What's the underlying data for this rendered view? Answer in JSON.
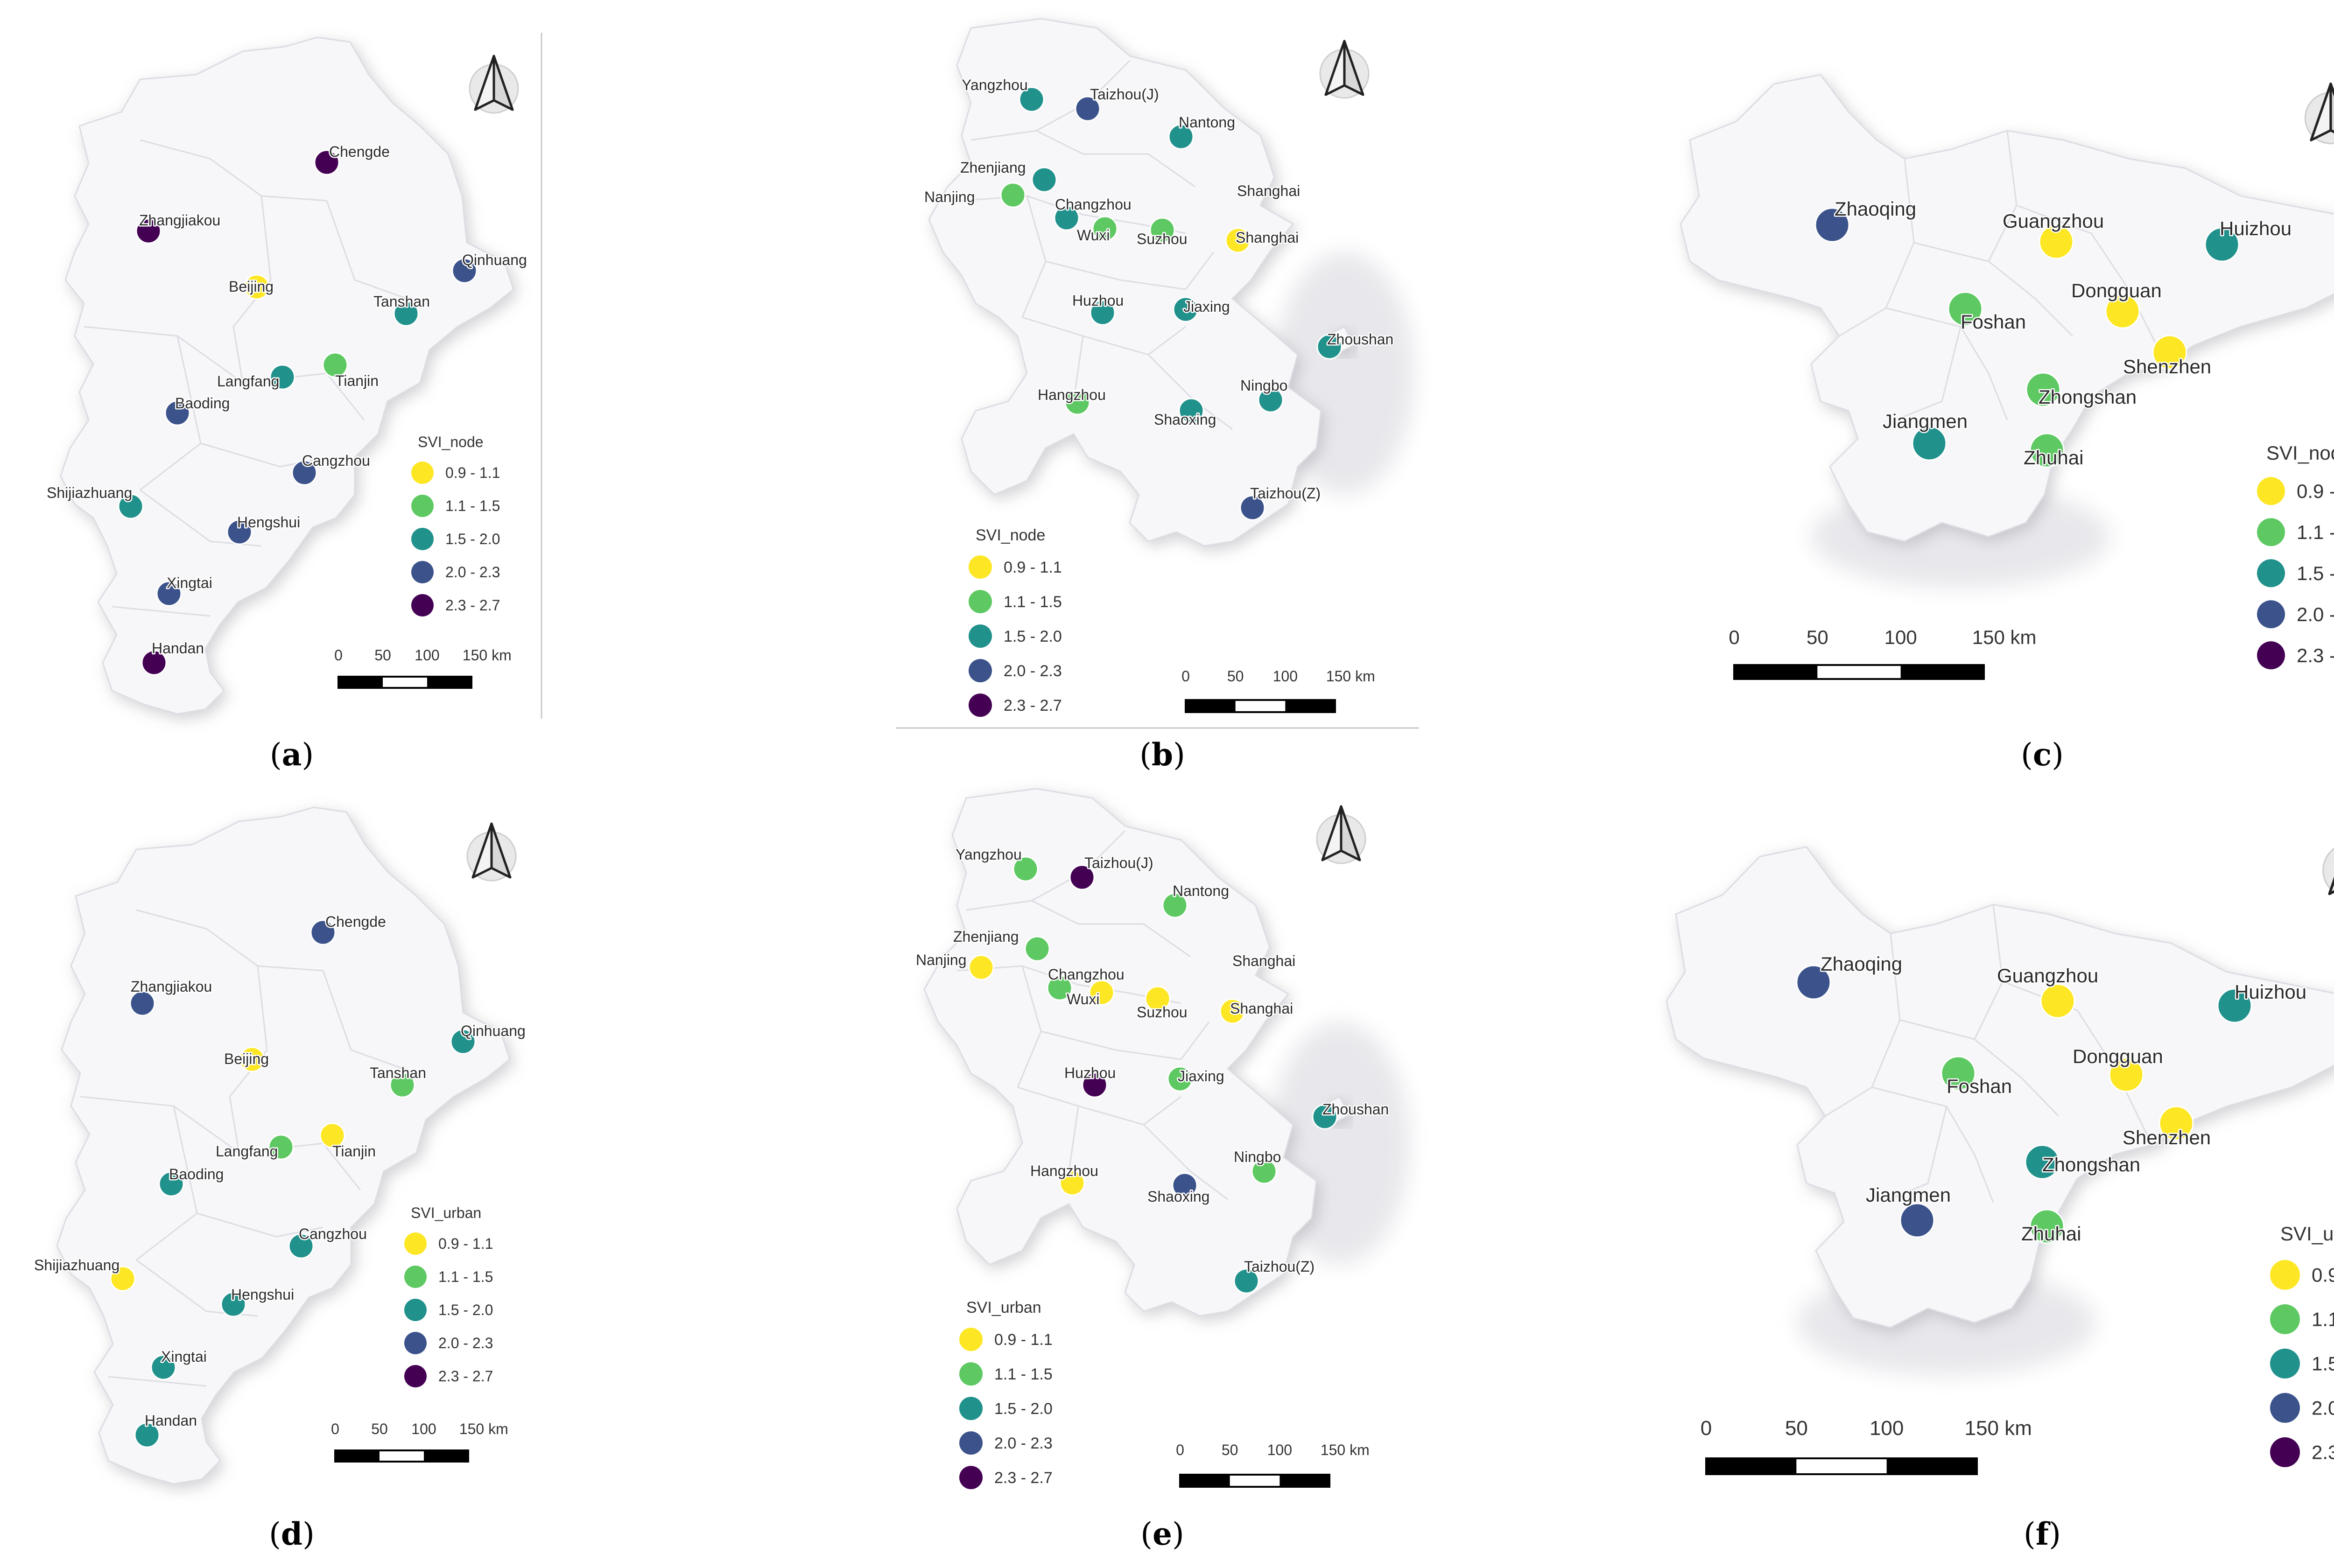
{
  "figure": {
    "colors": {
      "0.9 - 1.1": "#fde725",
      "1.1 - 1.5": "#5ec962",
      "1.5 - 2.0": "#21918c",
      "2.0 - 2.3": "#3b528b",
      "2.3 - 2.7": "#440154"
    },
    "legend_classes": [
      "0.9 - 1.1",
      "1.1 - 1.5",
      "1.5 - 2.0",
      "2.0 - 2.3",
      "2.3 - 2.7"
    ],
    "scale_ticks": [
      "0",
      "50",
      "100",
      "150 km"
    ],
    "north_arrow_icon": "north-arrow-icon",
    "panels": [
      {
        "id": "a",
        "label": "a",
        "legend_title": "SVI_node",
        "cities": [
          {
            "name": "Chengde",
            "svi": "2.3 - 2.7"
          },
          {
            "name": "Zhangjiakou",
            "svi": "2.3 - 2.7"
          },
          {
            "name": "Qinhuang",
            "svi": "2.0 - 2.3"
          },
          {
            "name": "Beijing",
            "svi": "0.9 - 1.1"
          },
          {
            "name": "Tanshan",
            "svi": "1.5 - 2.0"
          },
          {
            "name": "Langfang",
            "svi": "1.5 - 2.0"
          },
          {
            "name": "Tianjin",
            "svi": "1.1 - 1.5"
          },
          {
            "name": "Baoding",
            "svi": "2.0 - 2.3"
          },
          {
            "name": "Cangzhou",
            "svi": "2.0 - 2.3"
          },
          {
            "name": "Shijiazhuang",
            "svi": "1.5 - 2.0"
          },
          {
            "name": "Hengshui",
            "svi": "2.0 - 2.3"
          },
          {
            "name": "Xingtai",
            "svi": "2.0 - 2.3"
          },
          {
            "name": "Handan",
            "svi": "2.3 - 2.7"
          }
        ]
      },
      {
        "id": "b",
        "label": "b",
        "legend_title": "SVI_node",
        "cities": [
          {
            "name": "Yangzhou",
            "svi": "1.5 - 2.0"
          },
          {
            "name": "Taizhou(J)",
            "svi": "2.0 - 2.3"
          },
          {
            "name": "Nantong",
            "svi": "1.5 - 2.0"
          },
          {
            "name": "Zhenjiang",
            "svi": "1.5 - 2.0"
          },
          {
            "name": "Nanjing",
            "svi": "1.1 - 1.5"
          },
          {
            "name": "Changzhou",
            "svi": "1.5 - 2.0"
          },
          {
            "name": "Wuxi",
            "svi": "1.1 - 1.5"
          },
          {
            "name": "Suzhou",
            "svi": "1.1 - 1.5"
          },
          {
            "name": "Shanghai",
            "svi": null
          },
          {
            "name": "Shanghai",
            "svi": "0.9 - 1.1"
          },
          {
            "name": "Huzhou",
            "svi": "1.5 - 2.0"
          },
          {
            "name": "Jiaxing",
            "svi": "1.5 - 2.0"
          },
          {
            "name": "Zhoushan",
            "svi": "1.5 - 2.0"
          },
          {
            "name": "Hangzhou",
            "svi": "1.1 - 1.5"
          },
          {
            "name": "Ningbo",
            "svi": "1.5 - 2.0"
          },
          {
            "name": "Shaoxing",
            "svi": "1.5 - 2.0"
          },
          {
            "name": "Taizhou(Z)",
            "svi": "2.0 - 2.3"
          }
        ]
      },
      {
        "id": "c",
        "label": "c",
        "legend_title": "SVI_node",
        "cities": [
          {
            "name": "Zhaoqing",
            "svi": "2.0 - 2.3"
          },
          {
            "name": "Guangzhou",
            "svi": "0.9 - 1.1"
          },
          {
            "name": "Huizhou",
            "svi": "1.5 - 2.0"
          },
          {
            "name": "Foshan",
            "svi": "1.1 - 1.5"
          },
          {
            "name": "Dongguan",
            "svi": "0.9 - 1.1"
          },
          {
            "name": "Shenzhen",
            "svi": "0.9 - 1.1"
          },
          {
            "name": "Zhongshan",
            "svi": "1.1 - 1.5"
          },
          {
            "name": "Jiangmen",
            "svi": "1.5 - 2.0"
          },
          {
            "name": "Zhuhai",
            "svi": "1.1 - 1.5"
          }
        ]
      },
      {
        "id": "d",
        "label": "d",
        "legend_title": "SVI_urban",
        "cities": [
          {
            "name": "Chengde",
            "svi": "2.0 - 2.3"
          },
          {
            "name": "Zhangjiakou",
            "svi": "2.0 - 2.3"
          },
          {
            "name": "Qinhuang",
            "svi": "1.5 - 2.0"
          },
          {
            "name": "Beijing",
            "svi": "0.9 - 1.1"
          },
          {
            "name": "Tanshan",
            "svi": "1.1 - 1.5"
          },
          {
            "name": "Langfang",
            "svi": "1.1 - 1.5"
          },
          {
            "name": "Tianjin",
            "svi": "0.9 - 1.1"
          },
          {
            "name": "Baoding",
            "svi": "1.5 - 2.0"
          },
          {
            "name": "Cangzhou",
            "svi": "1.5 - 2.0"
          },
          {
            "name": "Shijiazhuang",
            "svi": "0.9 - 1.1"
          },
          {
            "name": "Hengshui",
            "svi": "1.5 - 2.0"
          },
          {
            "name": "Xingtai",
            "svi": "1.5 - 2.0"
          },
          {
            "name": "Handan",
            "svi": "1.5 - 2.0"
          }
        ]
      },
      {
        "id": "e",
        "label": "e",
        "legend_title": "SVI_urban",
        "cities": [
          {
            "name": "Yangzhou",
            "svi": "1.1 - 1.5"
          },
          {
            "name": "Taizhou(J)",
            "svi": "2.3 - 2.7"
          },
          {
            "name": "Nantong",
            "svi": "1.1 - 1.5"
          },
          {
            "name": "Zhenjiang",
            "svi": "1.1 - 1.5"
          },
          {
            "name": "Nanjing",
            "svi": "0.9 - 1.1"
          },
          {
            "name": "Changzhou",
            "svi": "1.1 - 1.5"
          },
          {
            "name": "Wuxi",
            "svi": "0.9 - 1.1"
          },
          {
            "name": "Suzhou",
            "svi": "0.9 - 1.1"
          },
          {
            "name": "Shanghai",
            "svi": null
          },
          {
            "name": "Shanghai",
            "svi": "0.9 - 1.1"
          },
          {
            "name": "Huzhou",
            "svi": "2.3 - 2.7"
          },
          {
            "name": "Jiaxing",
            "svi": "1.1 - 1.5"
          },
          {
            "name": "Zhoushan",
            "svi": "1.5 - 2.0"
          },
          {
            "name": "Hangzhou",
            "svi": "0.9 - 1.1"
          },
          {
            "name": "Ningbo",
            "svi": "1.1 - 1.5"
          },
          {
            "name": "Shaoxing",
            "svi": "2.0 - 2.3"
          },
          {
            "name": "Taizhou(Z)",
            "svi": "1.5 - 2.0"
          }
        ]
      },
      {
        "id": "f",
        "label": "f",
        "legend_title": "SVI_urban",
        "cities": [
          {
            "name": "Zhaoqing",
            "svi": "2.0 - 2.3"
          },
          {
            "name": "Guangzhou",
            "svi": "0.9 - 1.1"
          },
          {
            "name": "Huizhou",
            "svi": "1.5 - 2.0"
          },
          {
            "name": "Foshan",
            "svi": "1.1 - 1.5"
          },
          {
            "name": "Dongguan",
            "svi": "0.9 - 1.1"
          },
          {
            "name": "Shenzhen",
            "svi": "0.9 - 1.1"
          },
          {
            "name": "Zhongshan",
            "svi": "1.5 - 2.0"
          },
          {
            "name": "Jiangmen",
            "svi": "2.0 - 2.3"
          },
          {
            "name": "Zhuhai",
            "svi": "1.1 - 1.5"
          }
        ]
      }
    ]
  }
}
